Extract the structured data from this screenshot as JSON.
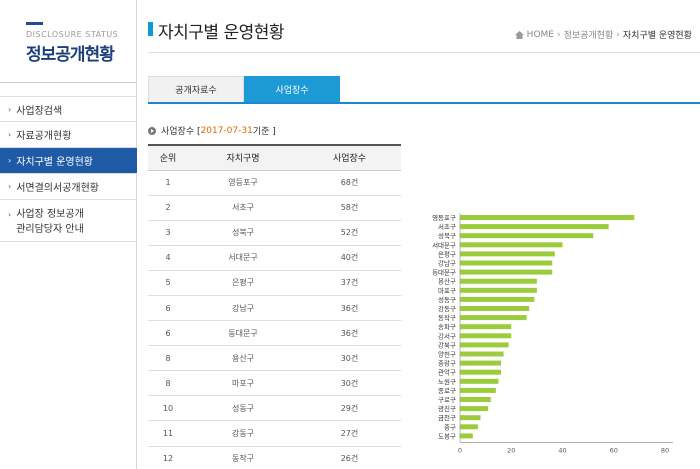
{
  "sidebar": {
    "subtitle": "DISCLOSURE STATUS",
    "title": "정보공개현황",
    "items": [
      {
        "label": "사업장검색"
      },
      {
        "label": "자료공개현황"
      },
      {
        "label": "자치구별 운영현황"
      },
      {
        "label": "서면결의서공개현황"
      },
      {
        "label_line1": "사업장 정보공개",
        "label_line2": "관리담당자 안내"
      }
    ]
  },
  "header": {
    "title": "자치구별 운영현황",
    "breadcrumb": {
      "home": "HOME",
      "parent": "정보공개현황",
      "current": "자치구별 운영현황"
    }
  },
  "tabs": [
    {
      "label": "공개자료수"
    },
    {
      "label": "사업장수"
    }
  ],
  "section": {
    "prefix": "사업장수 [ ",
    "date": "2017-07-31",
    "suffix": " 기준 ]"
  },
  "table": {
    "headers": [
      "순위",
      "자치구명",
      "사업장수"
    ],
    "rows": [
      [
        "1",
        "영등포구",
        "68건"
      ],
      [
        "2",
        "서초구",
        "58건"
      ],
      [
        "3",
        "성북구",
        "52건"
      ],
      [
        "4",
        "서대문구",
        "40건"
      ],
      [
        "5",
        "은평구",
        "37건"
      ],
      [
        "6",
        "강남구",
        "36건"
      ],
      [
        "6",
        "동대문구",
        "36건"
      ],
      [
        "8",
        "용산구",
        "30건"
      ],
      [
        "8",
        "마포구",
        "30건"
      ],
      [
        "10",
        "성동구",
        "29건"
      ],
      [
        "11",
        "강동구",
        "27건"
      ],
      [
        "12",
        "동작구",
        "26건"
      ]
    ]
  },
  "colors": {
    "accent": "#1c9ad6",
    "nav_active": "#1f5aa6",
    "bar": "#9ccc3c",
    "date": "#e06a00"
  },
  "chart_data": {
    "type": "bar",
    "orientation": "horizontal",
    "categories": [
      "영등포구",
      "서초구",
      "성북구",
      "서대문구",
      "은평구",
      "강남구",
      "동대문구",
      "용산구",
      "마포구",
      "성동구",
      "강동구",
      "동작구",
      "송파구",
      "강서구",
      "강북구",
      "양천구",
      "중랑구",
      "관악구",
      "노원구",
      "종로구",
      "구로구",
      "광진구",
      "금천구",
      "중구",
      "도봉구"
    ],
    "values": [
      68,
      58,
      52,
      40,
      37,
      36,
      36,
      30,
      30,
      29,
      27,
      26,
      20,
      20,
      19,
      17,
      16,
      16,
      15,
      14,
      12,
      11,
      8,
      7,
      5
    ],
    "xlim": [
      0,
      80
    ],
    "xticks": [
      "0",
      "20",
      "40",
      "60",
      "80"
    ],
    "grid": false
  }
}
